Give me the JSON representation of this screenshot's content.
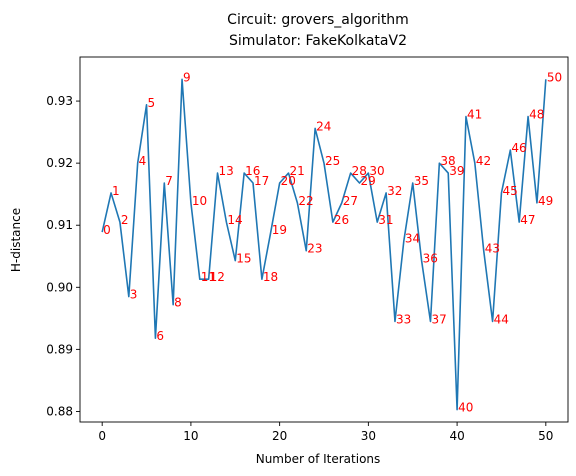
{
  "chart_data": {
    "type": "line",
    "title": "Circuit: grovers_algorithm",
    "subtitle": "Simulator: FakeKolkataV2",
    "xlabel": "Number of Iterations",
    "ylabel": "H-distance",
    "xlim": [
      -2.5,
      52.5
    ],
    "ylim": [
      0.8783,
      0.9371
    ],
    "x_ticks": [
      0,
      10,
      20,
      30,
      40,
      50
    ],
    "y_ticks": [
      0.88,
      0.89,
      0.9,
      0.91,
      0.92,
      0.93
    ],
    "y_tick_labels": [
      "0.88",
      "0.89",
      "0.90",
      "0.91",
      "0.92",
      "0.93"
    ],
    "grid": false,
    "line_color": "#1f77b4",
    "label_color": "#ff0000",
    "x": [
      0,
      1,
      2,
      3,
      4,
      5,
      6,
      7,
      8,
      9,
      10,
      11,
      12,
      13,
      14,
      15,
      16,
      17,
      18,
      19,
      20,
      21,
      22,
      23,
      24,
      25,
      26,
      27,
      28,
      29,
      30,
      31,
      32,
      33,
      34,
      35,
      36,
      37,
      38,
      39,
      40,
      41,
      42,
      43,
      44,
      45,
      46,
      47,
      48,
      49,
      50
    ],
    "values": [
      0.9089,
      0.9152,
      0.9105,
      0.8985,
      0.92,
      0.9294,
      0.8918,
      0.9168,
      0.8972,
      0.9335,
      0.9136,
      0.9013,
      0.9013,
      0.9184,
      0.9105,
      0.9043,
      0.9184,
      0.9168,
      0.9013,
      0.9089,
      0.9168,
      0.9184,
      0.9136,
      0.9059,
      0.9256,
      0.92,
      0.9105,
      0.9136,
      0.9184,
      0.9168,
      0.9184,
      0.9105,
      0.9152,
      0.8945,
      0.9075,
      0.9168,
      0.9043,
      0.8945,
      0.92,
      0.9184,
      0.8803,
      0.9275,
      0.92,
      0.9059,
      0.8945,
      0.9152,
      0.9221,
      0.9105,
      0.9275,
      0.9136,
      0.9335
    ],
    "point_labels": [
      "0",
      "1",
      "2",
      "3",
      "4",
      "5",
      "6",
      "7",
      "8",
      "9",
      "10",
      "11",
      "12",
      "13",
      "14",
      "15",
      "16",
      "17",
      "18",
      "19",
      "20",
      "21",
      "22",
      "23",
      "24",
      "25",
      "26",
      "27",
      "28",
      "29",
      "30",
      "31",
      "32",
      "33",
      "34",
      "35",
      "36",
      "37",
      "38",
      "39",
      "40",
      "41",
      "42",
      "43",
      "44",
      "45",
      "46",
      "47",
      "48",
      "49",
      "50"
    ]
  }
}
